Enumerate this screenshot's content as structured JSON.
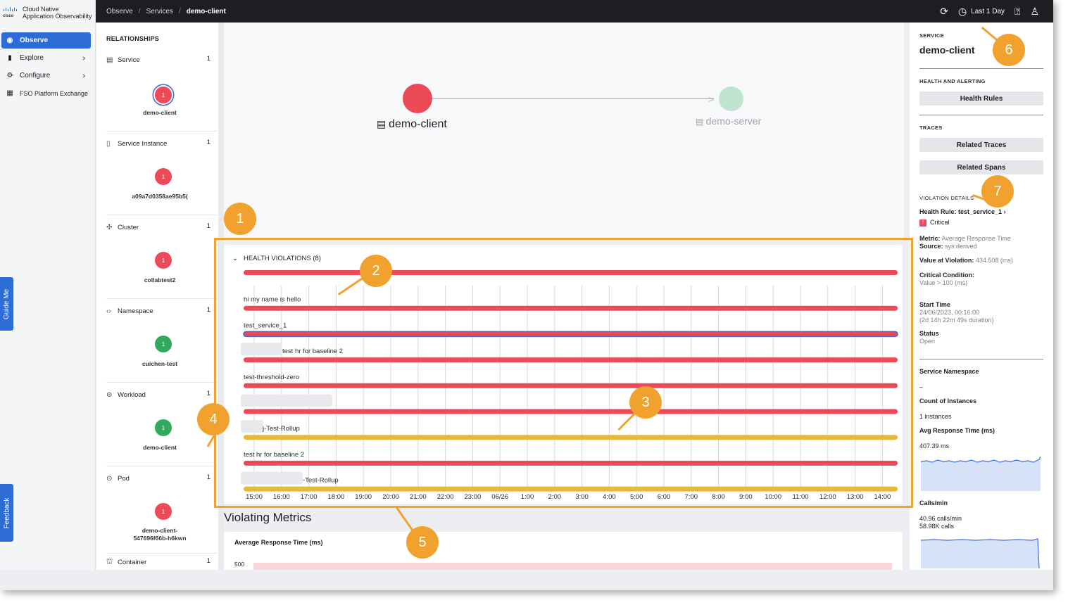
{
  "brand": {
    "logo_text": "cisco",
    "title_line1": "Cloud Native",
    "title_line2": "Application Observability"
  },
  "nav": [
    {
      "label": "Observe",
      "icon": "eye-icon",
      "active": true
    },
    {
      "label": "Explore",
      "icon": "bar-chart-icon",
      "has_chevron": true
    },
    {
      "label": "Configure",
      "icon": "gear-icon",
      "has_chevron": true
    },
    {
      "label": "FSO Platform Exchange",
      "icon": "grid-icon"
    }
  ],
  "side_tabs": {
    "guide": "Guide Me",
    "feedback": "Feedback"
  },
  "breadcrumb": {
    "items": [
      "Observe",
      "Services"
    ],
    "current": "demo-client",
    "separator": "/"
  },
  "topbar": {
    "time_range": "Last 1 Day",
    "icons": [
      "refresh-icon",
      "clock-icon",
      "help-icon",
      "user-icon"
    ]
  },
  "relationships": {
    "title": "RELATIONSHIPS",
    "sections": [
      {
        "label": "Service",
        "count": "1",
        "icon": "service-icon",
        "dot": "1",
        "status": "red",
        "name": "demo-client",
        "selected": true
      },
      {
        "label": "Service Instance",
        "count": "1",
        "icon": "instance-icon",
        "dot": "1",
        "status": "red",
        "name": "a09a7d0358ae95b5("
      },
      {
        "label": "Cluster",
        "count": "1",
        "icon": "cluster-icon",
        "dot": "1",
        "status": "red",
        "name": "collabtest2"
      },
      {
        "label": "Namespace",
        "count": "1",
        "icon": "namespace-icon",
        "dot": "1",
        "status": "green",
        "name": "cuichen-test"
      },
      {
        "label": "Workload",
        "count": "1",
        "icon": "workload-icon",
        "dot": "1",
        "status": "green",
        "name": "demo-client"
      },
      {
        "label": "Pod",
        "count": "1",
        "icon": "pod-icon",
        "dot": "1",
        "status": "red",
        "name": "demo-client-\n547696f66b-h6kwn"
      },
      {
        "label": "Container",
        "count": "1",
        "icon": "container-icon"
      }
    ]
  },
  "topology": {
    "source": "demo-client",
    "target": "demo-server"
  },
  "health_violations": {
    "title": "HEALTH VIOLATIONS (8)",
    "rows": [
      {
        "label": "",
        "color": "#ec4a57"
      },
      {
        "label": "hi my name is hello",
        "color": "#ec4a57"
      },
      {
        "label": "test_service_1",
        "color": "#ec4a57",
        "selected": true
      },
      {
        "label": "test hr for baseline 2",
        "color": "#ec4a57",
        "blurred_prefix": true
      },
      {
        "label": "test-threshold-zero",
        "color": "#ec4a57"
      },
      {
        "label": "",
        "color": "#ec4a57",
        "blurred_prefix": true
      },
      {
        "label": "j-Test-Rollup",
        "color": "#e5b93a",
        "blurred_prefix": true
      },
      {
        "label": "test hr for baseline 2",
        "color": "#ec4a57"
      },
      {
        "label": "-Test-Rollup",
        "color": "#e5b93a",
        "blurred_prefix": true
      }
    ],
    "x_ticks": [
      "15:00",
      "16:00",
      "17:00",
      "18:00",
      "19:00",
      "20:00",
      "21:00",
      "22:00",
      "23:00",
      "06/26",
      "1:00",
      "2:00",
      "3:00",
      "4:00",
      "5:00",
      "6:00",
      "7:00",
      "8:00",
      "9:00",
      "10:00",
      "11:00",
      "12:00",
      "13:00",
      "14:00"
    ]
  },
  "annotations": [
    "1",
    "2",
    "3",
    "4",
    "5",
    "6",
    "7"
  ],
  "violating_metrics": {
    "title": "Violating Metrics",
    "chart_title": "Average Response Time (ms)",
    "y_tick": "500"
  },
  "service_panel": {
    "caption": "SERVICE",
    "name": "demo-client",
    "health_caption": "HEALTH AND ALERTING",
    "health_rules_btn": "Health Rules",
    "traces_caption": "TRACES",
    "related_traces_btn": "Related Traces",
    "related_spans_btn": "Related Spans",
    "violation_caption": "VIOLATION DETAILS",
    "health_rule": "Health Rule: test_service_1",
    "severity": "Critical",
    "metric_label": "Metric:",
    "metric_value": "Average Response Time",
    "source_label": "Source:",
    "source_value": "sys:derived",
    "value_label": "Value at Violation:",
    "value_value": "434.508 (ms)",
    "critical_label": "Critical Condition:",
    "critical_value": "Value > 100 (ms)",
    "start_label": "Start Time",
    "start_value": "24/06/2023, 00:16:00",
    "duration_value": "(2d 14h 22m 49s duration)",
    "status_label": "Status",
    "status_value": "Open",
    "ns_label": "Service Namespace",
    "ns_value": "–",
    "instances_label": "Count of Instances",
    "instances_value": "1 instances",
    "avg_label": "Avg Response Time (ms)",
    "avg_value": "407.39 ms",
    "calls_label": "Calls/min",
    "calls_value": "40.96 calls/min",
    "calls_total": "58.98K calls"
  }
}
